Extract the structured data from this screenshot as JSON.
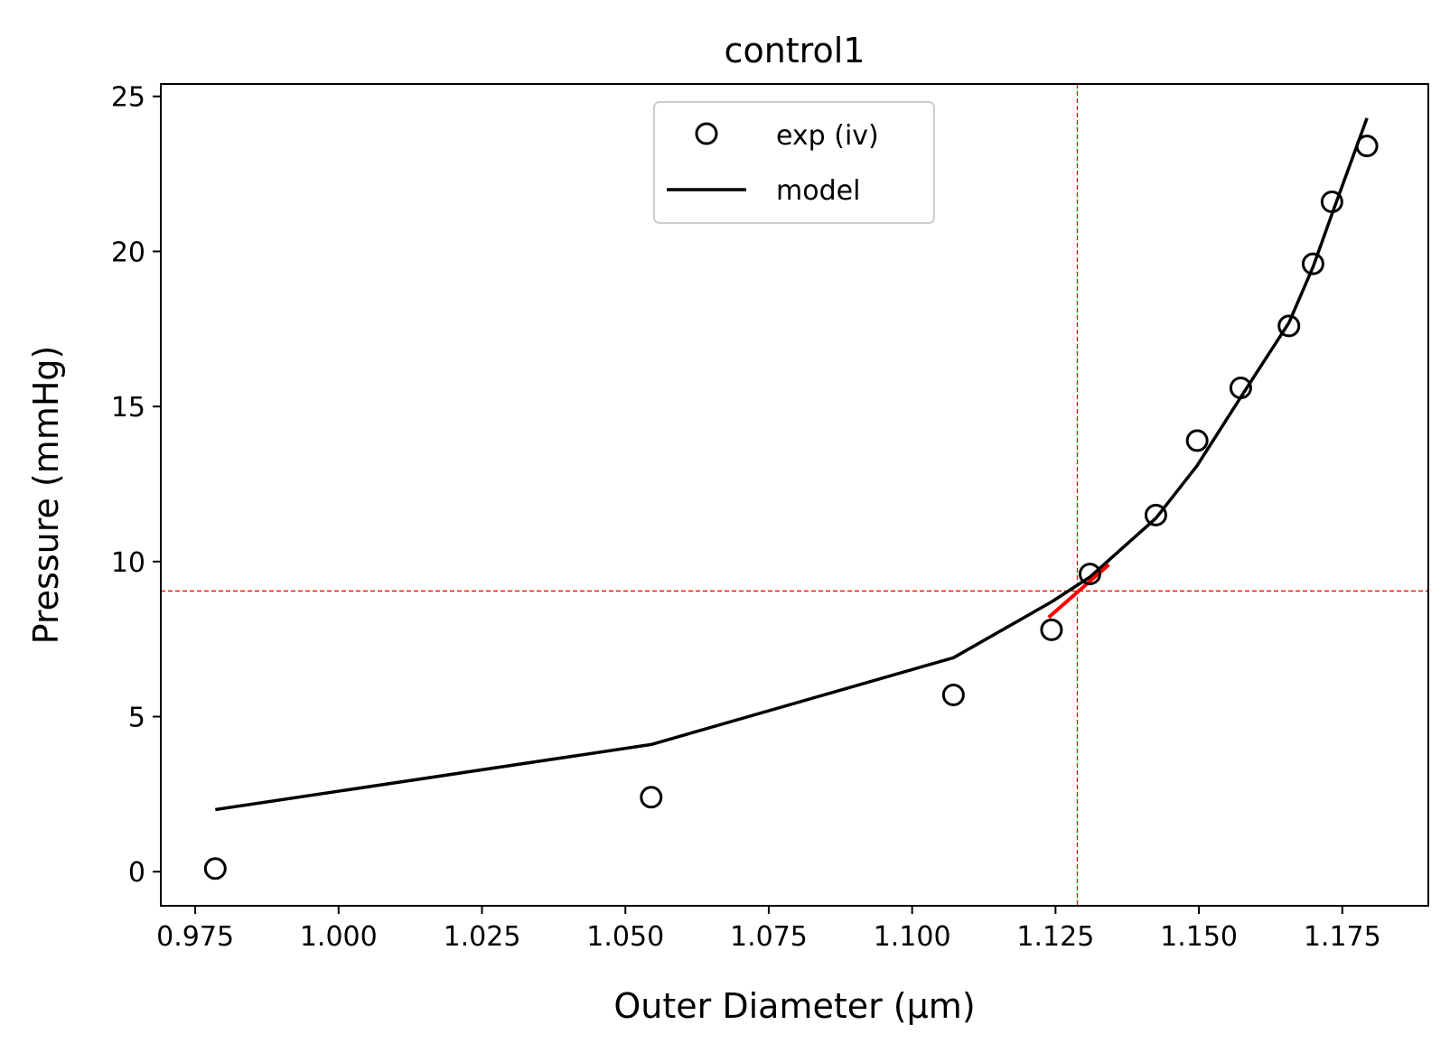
{
  "chart_data": {
    "type": "scatter",
    "title": "control1",
    "xlabel": "Outer Diameter (μm)",
    "ylabel": "Pressure (mmHg)",
    "xlim": [
      0.969,
      1.19
    ],
    "ylim": [
      -1.1,
      25.4
    ],
    "xticks": [
      "0.975",
      "1.000",
      "1.025",
      "1.050",
      "1.075",
      "1.100",
      "1.125",
      "1.150",
      "1.175"
    ],
    "yticks": [
      "0",
      "5",
      "10",
      "15",
      "20",
      "25"
    ],
    "legend_position": "upper center",
    "grid": false,
    "series": [
      {
        "name": "exp (iv)",
        "style": "open-circle-markers",
        "color": "#000000",
        "x": [
          0.9785,
          1.0545,
          1.1072,
          1.1243,
          1.131,
          1.1425,
          1.1497,
          1.1573,
          1.1657,
          1.1699,
          1.1732,
          1.1793
        ],
        "y": [
          0.1,
          2.4,
          5.7,
          7.8,
          9.6,
          11.5,
          13.9,
          15.6,
          17.6,
          19.6,
          21.6,
          23.4
        ]
      },
      {
        "name": "model",
        "style": "line",
        "color": "#000000",
        "x": [
          0.9785,
          1.0545,
          1.1072,
          1.1243,
          1.131,
          1.1425,
          1.1497,
          1.1573,
          1.1657,
          1.1699,
          1.1732,
          1.1793
        ],
        "y": [
          2.0,
          4.1,
          6.9,
          8.7,
          9.5,
          11.4,
          13.1,
          15.3,
          17.7,
          19.5,
          21.2,
          24.3
        ]
      }
    ],
    "tangent": {
      "color": "#ff0000",
      "x": [
        1.1238,
        1.1343
      ],
      "y": [
        8.2,
        9.9
      ]
    },
    "reference_lines": {
      "color": "#ff0000",
      "style": "dashed",
      "vertical_x": 1.1288,
      "horizontal_y": 9.05
    }
  }
}
